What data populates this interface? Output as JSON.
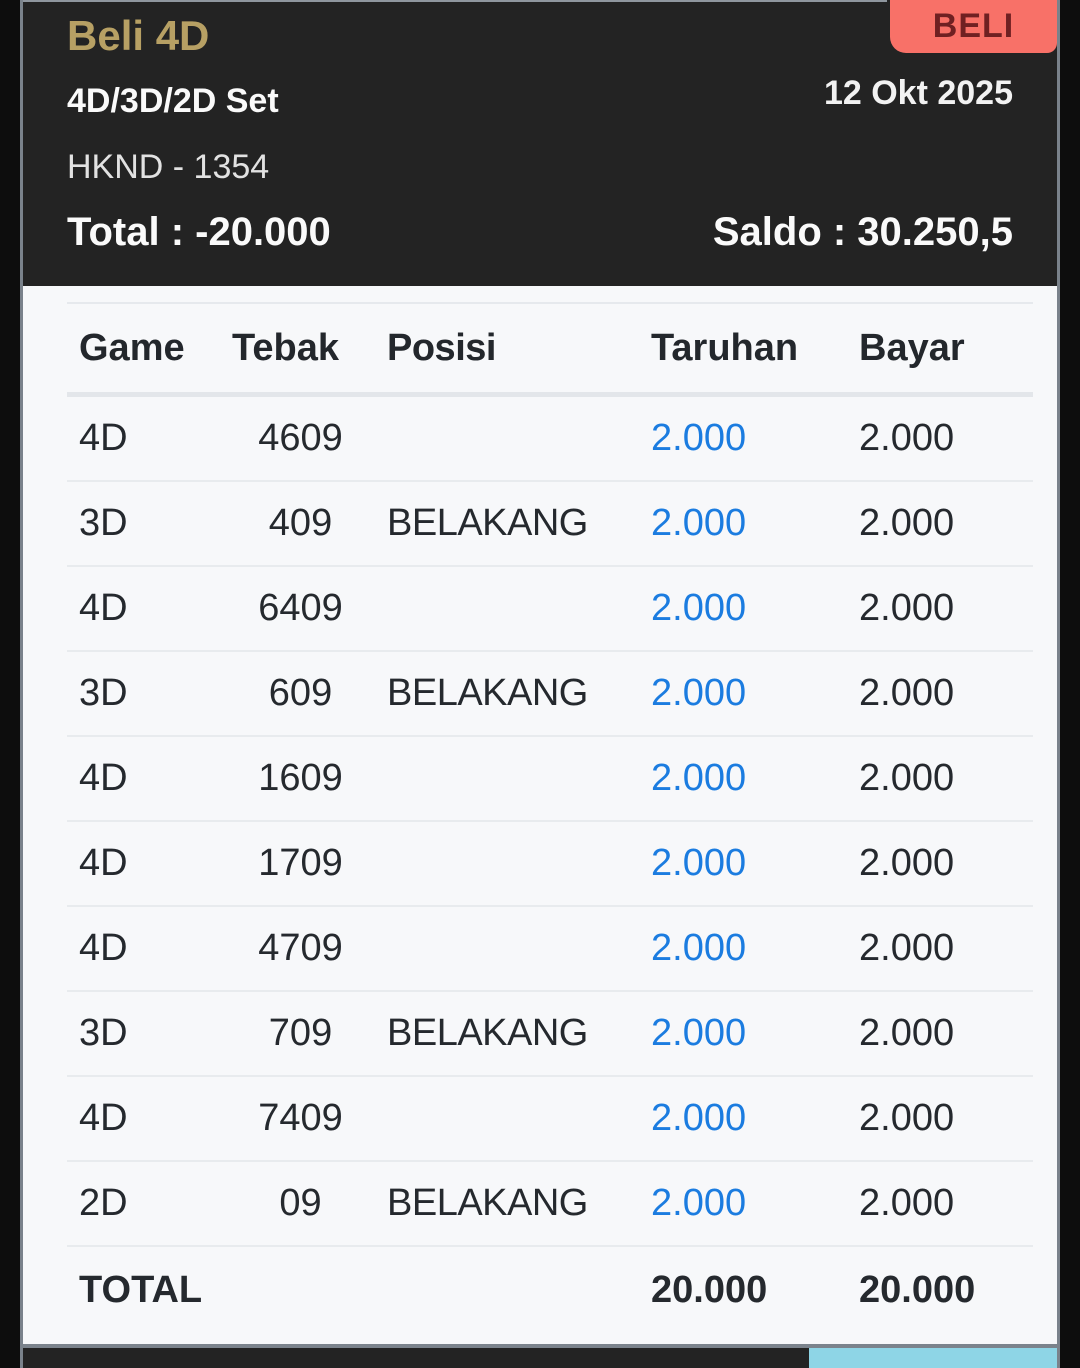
{
  "header": {
    "title": "Beli 4D",
    "buy_button_label": "BELI",
    "subtitle": "4D/3D/2D Set",
    "date": "12 Okt 2025",
    "draw": "HKND - 1354",
    "total_text": "Total : -20.000",
    "saldo_text": "Saldo : 30.250,5"
  },
  "table": {
    "columns": [
      "Game",
      "Tebak",
      "Posisi",
      "Taruhan",
      "Bayar"
    ],
    "rows": [
      {
        "game": "4D",
        "tebak": "4609",
        "posisi": "",
        "taruhan": "2.000",
        "bayar": "2.000"
      },
      {
        "game": "3D",
        "tebak": "409",
        "posisi": "BELAKANG",
        "taruhan": "2.000",
        "bayar": "2.000"
      },
      {
        "game": "4D",
        "tebak": "6409",
        "posisi": "",
        "taruhan": "2.000",
        "bayar": "2.000"
      },
      {
        "game": "3D",
        "tebak": "609",
        "posisi": "BELAKANG",
        "taruhan": "2.000",
        "bayar": "2.000"
      },
      {
        "game": "4D",
        "tebak": "1609",
        "posisi": "",
        "taruhan": "2.000",
        "bayar": "2.000"
      },
      {
        "game": "4D",
        "tebak": "1709",
        "posisi": "",
        "taruhan": "2.000",
        "bayar": "2.000"
      },
      {
        "game": "4D",
        "tebak": "4709",
        "posisi": "",
        "taruhan": "2.000",
        "bayar": "2.000"
      },
      {
        "game": "3D",
        "tebak": "709",
        "posisi": "BELAKANG",
        "taruhan": "2.000",
        "bayar": "2.000"
      },
      {
        "game": "4D",
        "tebak": "7409",
        "posisi": "",
        "taruhan": "2.000",
        "bayar": "2.000"
      },
      {
        "game": "2D",
        "tebak": "09",
        "posisi": "BELAKANG",
        "taruhan": "2.000",
        "bayar": "2.000"
      }
    ],
    "total": {
      "label": "TOTAL",
      "taruhan": "20.000",
      "bayar": "20.000"
    }
  },
  "colors": {
    "accent_gold": "#b7a064",
    "buy_button_bg": "#f87168",
    "buy_button_text": "#6f2022",
    "link_blue": "#1b7ce0",
    "header_bg": "#232323",
    "panel_bg": "#f7f8fa",
    "scroll_thumb": "#8ed5e6"
  }
}
